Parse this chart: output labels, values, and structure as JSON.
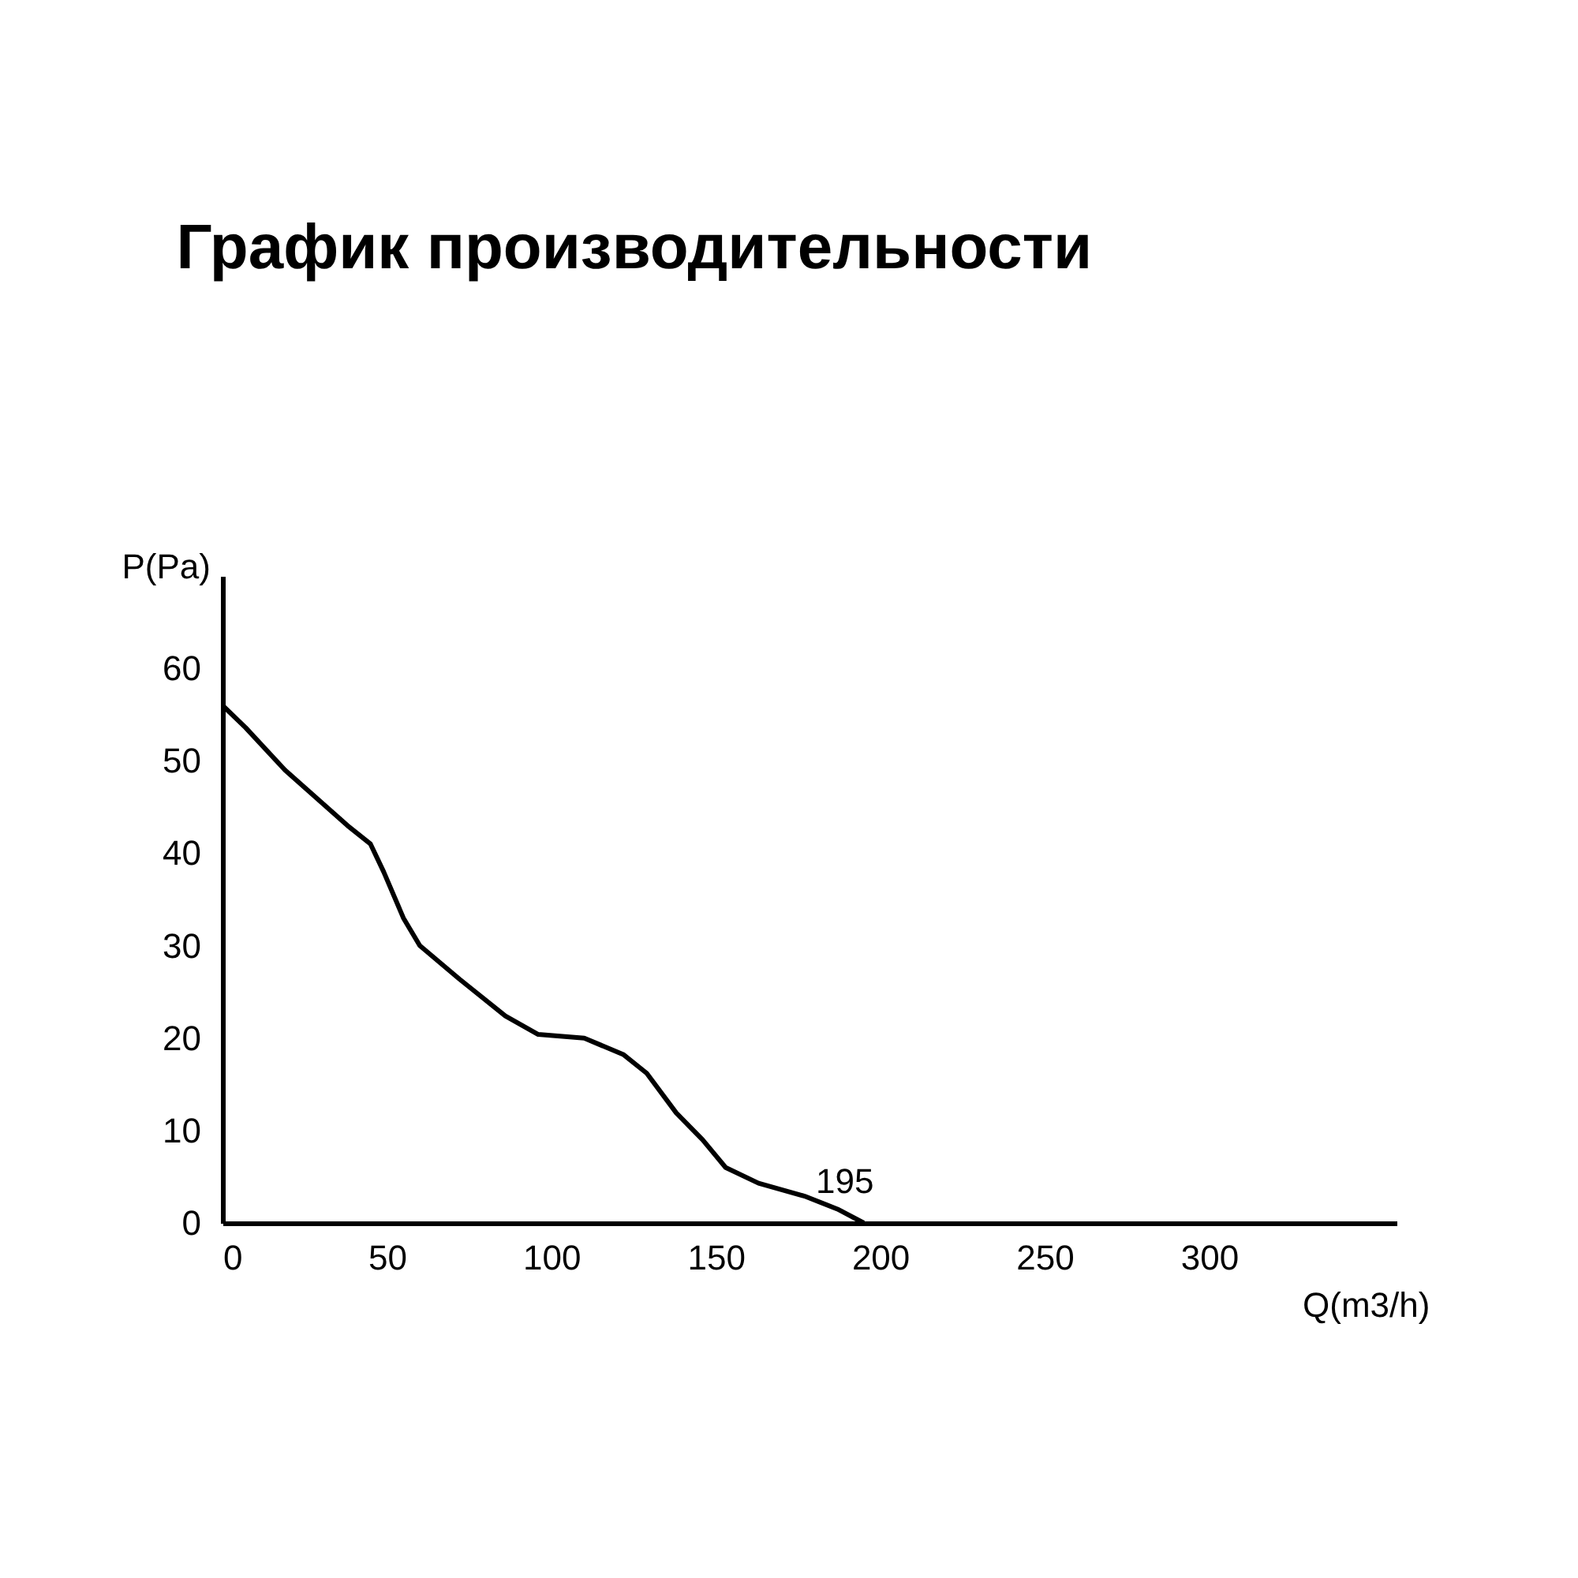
{
  "chart_data": {
    "type": "line",
    "title": "График производительности",
    "xlabel": "Q(m3/h)",
    "ylabel": "P(Pa)",
    "x": [
      0,
      7,
      19,
      38,
      45,
      49,
      55,
      60,
      72,
      86,
      96,
      110,
      122,
      129,
      138,
      146,
      153,
      163,
      177,
      187,
      195
    ],
    "series": [
      {
        "color": "#000000",
        "values": [
          56,
          53.6,
          49,
          43,
          41,
          38,
          33,
          30,
          26.4,
          22.4,
          20.4,
          20,
          18.2,
          16.2,
          11.9,
          9,
          6,
          4.3,
          2.9,
          1.5,
          0
        ]
      }
    ],
    "xlim": [
      0,
      357
    ],
    "ylim": [
      0,
      70
    ],
    "xticks": [
      0,
      50,
      100,
      150,
      200,
      250,
      300
    ],
    "yticks": [
      0,
      10,
      20,
      30,
      40,
      50,
      60
    ],
    "annotations": [
      {
        "text": "195",
        "x": 195,
        "y": 0
      }
    ],
    "grid": false,
    "marker": "none",
    "line_style": "solid"
  }
}
